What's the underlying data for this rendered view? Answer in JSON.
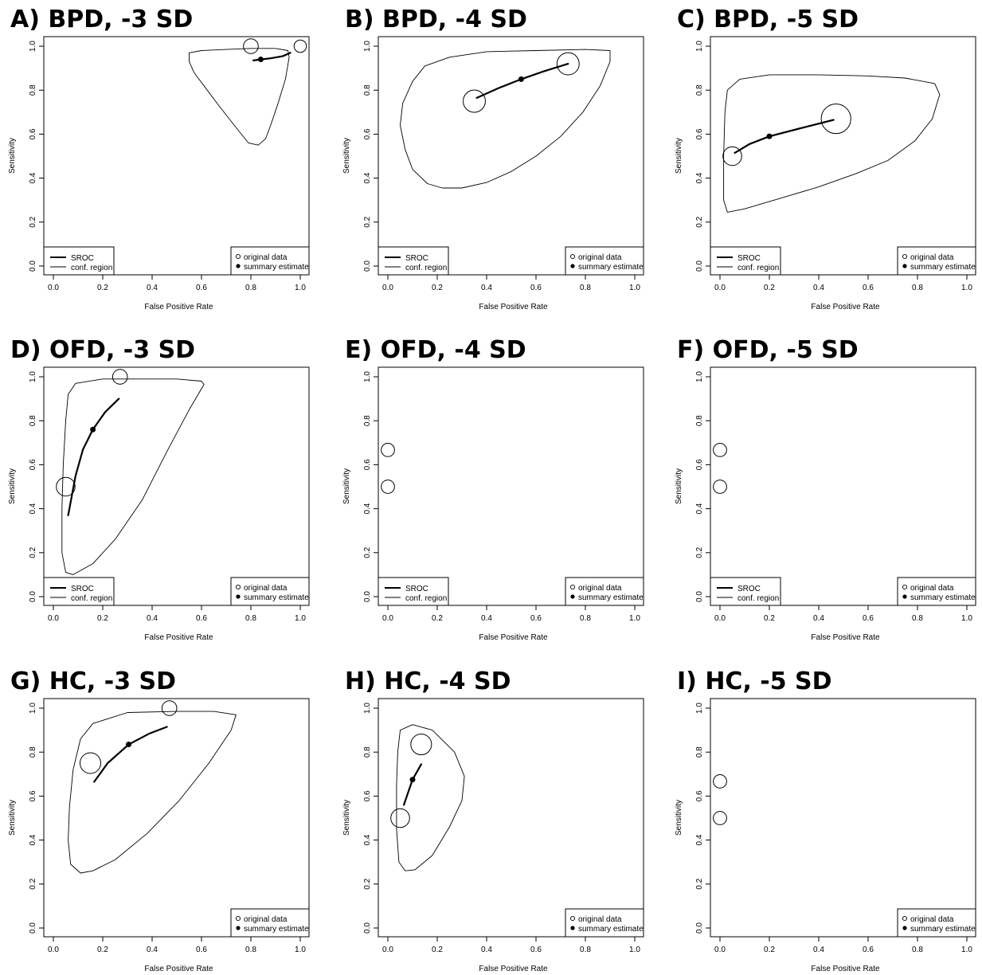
{
  "chart_data": [
    {
      "panel": "A) BPD, -3 SD",
      "type": "scatter",
      "xlabel": "False Positive Rate",
      "ylabel": "Sensitivity",
      "xlim": [
        0,
        1
      ],
      "ylim": [
        0,
        1
      ],
      "xticks": [
        "0.0",
        "0.2",
        "0.4",
        "0.6",
        "0.8",
        "1.0"
      ],
      "yticks": [
        "0.0",
        "0.2",
        "0.4",
        "0.6",
        "0.8",
        "1.0"
      ],
      "legend_left": [
        "SROC",
        "conf. region"
      ],
      "legend_right": [
        "original data",
        "summary estimate"
      ],
      "original_data": [
        {
          "x": 0.8,
          "y": 1.0,
          "r": 0.03
        },
        {
          "x": 1.0,
          "y": 1.0,
          "r": 0.025
        }
      ],
      "summary_estimate": {
        "x": 0.84,
        "y": 0.94
      },
      "sroc": [
        [
          0.81,
          0.935
        ],
        [
          0.84,
          0.94
        ],
        [
          0.88,
          0.945
        ],
        [
          0.93,
          0.955
        ],
        [
          0.96,
          0.97
        ]
      ],
      "conf_region": [
        [
          0.55,
          0.97
        ],
        [
          0.6,
          0.98
        ],
        [
          0.7,
          0.985
        ],
        [
          0.8,
          0.99
        ],
        [
          0.9,
          0.99
        ],
        [
          0.95,
          0.98
        ],
        [
          0.955,
          0.95
        ],
        [
          0.94,
          0.85
        ],
        [
          0.91,
          0.74
        ],
        [
          0.88,
          0.64
        ],
        [
          0.86,
          0.58
        ],
        [
          0.83,
          0.55
        ],
        [
          0.79,
          0.56
        ],
        [
          0.74,
          0.63
        ],
        [
          0.67,
          0.73
        ],
        [
          0.61,
          0.82
        ],
        [
          0.57,
          0.88
        ],
        [
          0.55,
          0.93
        ],
        [
          0.55,
          0.97
        ]
      ]
    },
    {
      "panel": "B) BPD, -4 SD",
      "type": "scatter",
      "xlabel": "False Positive Rate",
      "ylabel": "Sensitivity",
      "xlim": [
        0,
        1
      ],
      "ylim": [
        0,
        1
      ],
      "xticks": [
        "0.0",
        "0.2",
        "0.4",
        "0.6",
        "0.8",
        "1.0"
      ],
      "yticks": [
        "0.0",
        "0.2",
        "0.4",
        "0.6",
        "0.8",
        "1.0"
      ],
      "legend_left": [
        "SROC",
        "conf. region"
      ],
      "legend_right": [
        "original data",
        "summary estimate"
      ],
      "original_data": [
        {
          "x": 0.35,
          "y": 0.75,
          "r": 0.045
        },
        {
          "x": 0.73,
          "y": 0.92,
          "r": 0.045
        }
      ],
      "summary_estimate": {
        "x": 0.54,
        "y": 0.85
      },
      "sroc": [
        [
          0.36,
          0.765
        ],
        [
          0.45,
          0.81
        ],
        [
          0.54,
          0.85
        ],
        [
          0.63,
          0.885
        ],
        [
          0.73,
          0.92
        ]
      ],
      "conf_region": [
        [
          0.25,
          0.95
        ],
        [
          0.4,
          0.975
        ],
        [
          0.6,
          0.98
        ],
        [
          0.8,
          0.985
        ],
        [
          0.9,
          0.98
        ],
        [
          0.9,
          0.93
        ],
        [
          0.86,
          0.82
        ],
        [
          0.79,
          0.7
        ],
        [
          0.7,
          0.59
        ],
        [
          0.6,
          0.5
        ],
        [
          0.5,
          0.43
        ],
        [
          0.4,
          0.38
        ],
        [
          0.3,
          0.355
        ],
        [
          0.22,
          0.355
        ],
        [
          0.16,
          0.375
        ],
        [
          0.1,
          0.44
        ],
        [
          0.07,
          0.53
        ],
        [
          0.05,
          0.64
        ],
        [
          0.06,
          0.74
        ],
        [
          0.1,
          0.84
        ],
        [
          0.15,
          0.91
        ],
        [
          0.25,
          0.95
        ]
      ]
    },
    {
      "panel": "C) BPD, -5 SD",
      "type": "scatter",
      "xlabel": "False Positive Rate",
      "ylabel": "Sensitivity",
      "xlim": [
        0,
        1
      ],
      "ylim": [
        0,
        1
      ],
      "xticks": [
        "0.0",
        "0.2",
        "0.4",
        "0.6",
        "0.8",
        "1.0"
      ],
      "yticks": [
        "0.0",
        "0.2",
        "0.4",
        "0.6",
        "0.8",
        "1.0"
      ],
      "legend_left": [
        "SROC",
        "conf. region"
      ],
      "legend_right": [
        "original data",
        "summary estimate"
      ],
      "original_data": [
        {
          "x": 0.05,
          "y": 0.5,
          "r": 0.038
        },
        {
          "x": 0.47,
          "y": 0.67,
          "r": 0.06
        }
      ],
      "summary_estimate": {
        "x": 0.2,
        "y": 0.59
      },
      "sroc": [
        [
          0.06,
          0.515
        ],
        [
          0.12,
          0.555
        ],
        [
          0.2,
          0.59
        ],
        [
          0.32,
          0.625
        ],
        [
          0.46,
          0.665
        ]
      ],
      "conf_region": [
        [
          0.03,
          0.8
        ],
        [
          0.08,
          0.85
        ],
        [
          0.2,
          0.87
        ],
        [
          0.4,
          0.87
        ],
        [
          0.6,
          0.865
        ],
        [
          0.75,
          0.855
        ],
        [
          0.87,
          0.83
        ],
        [
          0.89,
          0.78
        ],
        [
          0.86,
          0.67
        ],
        [
          0.79,
          0.57
        ],
        [
          0.68,
          0.48
        ],
        [
          0.55,
          0.42
        ],
        [
          0.4,
          0.36
        ],
        [
          0.25,
          0.31
        ],
        [
          0.1,
          0.26
        ],
        [
          0.03,
          0.245
        ],
        [
          0.015,
          0.3
        ],
        [
          0.015,
          0.5
        ],
        [
          0.02,
          0.7
        ],
        [
          0.03,
          0.8
        ]
      ]
    },
    {
      "panel": "D) OFD, -3 SD",
      "type": "scatter",
      "xlabel": "False Positive Rate",
      "ylabel": "Sensitivity",
      "xlim": [
        0,
        1
      ],
      "ylim": [
        0,
        1
      ],
      "xticks": [
        "0.0",
        "0.2",
        "0.4",
        "0.6",
        "0.8",
        "1.0"
      ],
      "yticks": [
        "0.0",
        "0.2",
        "0.4",
        "0.6",
        "0.8",
        "1.0"
      ],
      "legend_left": [
        "SROC",
        "conf. region"
      ],
      "legend_right": [
        "original data",
        "summary estimate"
      ],
      "original_data": [
        {
          "x": 0.05,
          "y": 0.5,
          "r": 0.038
        },
        {
          "x": 0.27,
          "y": 1.0,
          "r": 0.03
        }
      ],
      "summary_estimate": {
        "x": 0.16,
        "y": 0.76
      },
      "sroc": [
        [
          0.06,
          0.37
        ],
        [
          0.09,
          0.55
        ],
        [
          0.12,
          0.67
        ],
        [
          0.16,
          0.76
        ],
        [
          0.21,
          0.84
        ],
        [
          0.265,
          0.9
        ]
      ],
      "conf_region": [
        [
          0.09,
          0.97
        ],
        [
          0.2,
          0.99
        ],
        [
          0.35,
          0.99
        ],
        [
          0.5,
          0.99
        ],
        [
          0.6,
          0.98
        ],
        [
          0.61,
          0.965
        ],
        [
          0.55,
          0.85
        ],
        [
          0.46,
          0.66
        ],
        [
          0.36,
          0.44
        ],
        [
          0.25,
          0.26
        ],
        [
          0.16,
          0.15
        ],
        [
          0.08,
          0.1
        ],
        [
          0.05,
          0.11
        ],
        [
          0.035,
          0.2
        ],
        [
          0.035,
          0.4
        ],
        [
          0.04,
          0.6
        ],
        [
          0.05,
          0.8
        ],
        [
          0.06,
          0.92
        ],
        [
          0.09,
          0.97
        ]
      ]
    },
    {
      "panel": "E) OFD, -4 SD",
      "type": "scatter",
      "xlabel": "False Positive Rate",
      "ylabel": "Sensitivity",
      "xlim": [
        0,
        1
      ],
      "ylim": [
        0,
        1
      ],
      "xticks": [
        "0.0",
        "0.2",
        "0.4",
        "0.6",
        "0.8",
        "1.0"
      ],
      "yticks": [
        "0.0",
        "0.2",
        "0.4",
        "0.6",
        "0.8",
        "1.0"
      ],
      "legend_left": [
        "SROC",
        "conf. region"
      ],
      "legend_right": [
        "original data",
        "summary estimate"
      ],
      "original_data": [
        {
          "x": 0.0,
          "y": 0.667,
          "r": 0.027
        },
        {
          "x": 0.0,
          "y": 0.5,
          "r": 0.027
        }
      ]
    },
    {
      "panel": "F) OFD, -5 SD",
      "type": "scatter",
      "xlabel": "False Positive Rate",
      "ylabel": "Sensitivity",
      "xlim": [
        0,
        1
      ],
      "ylim": [
        0,
        1
      ],
      "xticks": [
        "0.0",
        "0.2",
        "0.4",
        "0.6",
        "0.8",
        "1.0"
      ],
      "yticks": [
        "0.0",
        "0.2",
        "0.4",
        "0.6",
        "0.8",
        "1.0"
      ],
      "legend_left": [
        "SROC",
        "conf. region"
      ],
      "legend_right": [
        "original data",
        "summary estimate"
      ],
      "original_data": [
        {
          "x": 0.0,
          "y": 0.667,
          "r": 0.027
        },
        {
          "x": 0.0,
          "y": 0.5,
          "r": 0.027
        }
      ]
    },
    {
      "panel": "G) HC, -3 SD",
      "type": "scatter",
      "xlabel": "False Positive Rate",
      "ylabel": "Sensitivity",
      "xlim": [
        0,
        1
      ],
      "ylim": [
        0,
        1
      ],
      "xticks": [
        "0.0",
        "0.2",
        "0.4",
        "0.6",
        "0.8",
        "1.0"
      ],
      "yticks": [
        "0.0",
        "0.2",
        "0.4",
        "0.6",
        "0.8",
        "1.0"
      ],
      "legend_right": [
        "original data",
        "summary estimate"
      ],
      "original_data": [
        {
          "x": 0.15,
          "y": 0.75,
          "r": 0.042
        },
        {
          "x": 0.47,
          "y": 1.0,
          "r": 0.03
        }
      ],
      "summary_estimate": {
        "x": 0.305,
        "y": 0.835
      },
      "sroc": [
        [
          0.165,
          0.665
        ],
        [
          0.22,
          0.75
        ],
        [
          0.305,
          0.835
        ],
        [
          0.39,
          0.885
        ],
        [
          0.46,
          0.915
        ]
      ],
      "conf_region": [
        [
          0.16,
          0.93
        ],
        [
          0.3,
          0.98
        ],
        [
          0.5,
          0.985
        ],
        [
          0.65,
          0.985
        ],
        [
          0.74,
          0.97
        ],
        [
          0.72,
          0.9
        ],
        [
          0.63,
          0.75
        ],
        [
          0.51,
          0.58
        ],
        [
          0.38,
          0.43
        ],
        [
          0.25,
          0.31
        ],
        [
          0.16,
          0.26
        ],
        [
          0.11,
          0.25
        ],
        [
          0.07,
          0.29
        ],
        [
          0.06,
          0.4
        ],
        [
          0.065,
          0.55
        ],
        [
          0.08,
          0.72
        ],
        [
          0.11,
          0.86
        ],
        [
          0.16,
          0.93
        ]
      ]
    },
    {
      "panel": "H) HC, -4 SD",
      "type": "scatter",
      "xlabel": "False Positive Rate",
      "ylabel": "Sensitivity",
      "xlim": [
        0,
        1
      ],
      "ylim": [
        0,
        1
      ],
      "xticks": [
        "0.0",
        "0.2",
        "0.4",
        "0.6",
        "0.8",
        "1.0"
      ],
      "yticks": [
        "0.0",
        "0.2",
        "0.4",
        "0.6",
        "0.8",
        "1.0"
      ],
      "legend_right": [
        "original data",
        "summary estimate"
      ],
      "original_data": [
        {
          "x": 0.05,
          "y": 0.5,
          "r": 0.038
        },
        {
          "x": 0.135,
          "y": 0.835,
          "r": 0.042
        }
      ],
      "summary_estimate": {
        "x": 0.1,
        "y": 0.675
      },
      "sroc": [
        [
          0.065,
          0.56
        ],
        [
          0.1,
          0.675
        ],
        [
          0.135,
          0.745
        ]
      ],
      "conf_region": [
        [
          0.05,
          0.9
        ],
        [
          0.1,
          0.925
        ],
        [
          0.18,
          0.9
        ],
        [
          0.27,
          0.8
        ],
        [
          0.31,
          0.69
        ],
        [
          0.3,
          0.58
        ],
        [
          0.25,
          0.46
        ],
        [
          0.18,
          0.33
        ],
        [
          0.11,
          0.265
        ],
        [
          0.07,
          0.26
        ],
        [
          0.045,
          0.3
        ],
        [
          0.035,
          0.45
        ],
        [
          0.035,
          0.65
        ],
        [
          0.04,
          0.8
        ],
        [
          0.05,
          0.9
        ]
      ]
    },
    {
      "panel": "I) HC, -5 SD",
      "type": "scatter",
      "xlabel": "False Positive Rate",
      "ylabel": "Sensitivity",
      "xlim": [
        0,
        1
      ],
      "ylim": [
        0,
        1
      ],
      "xticks": [
        "0.0",
        "0.2",
        "0.4",
        "0.6",
        "0.8",
        "1.0"
      ],
      "yticks": [
        "0.0",
        "0.2",
        "0.4",
        "0.6",
        "0.8",
        "1.0"
      ],
      "legend_right": [
        "original data",
        "summary estimate"
      ],
      "original_data": [
        {
          "x": 0.0,
          "y": 0.667,
          "r": 0.027
        },
        {
          "x": 0.0,
          "y": 0.5,
          "r": 0.027
        }
      ]
    }
  ]
}
